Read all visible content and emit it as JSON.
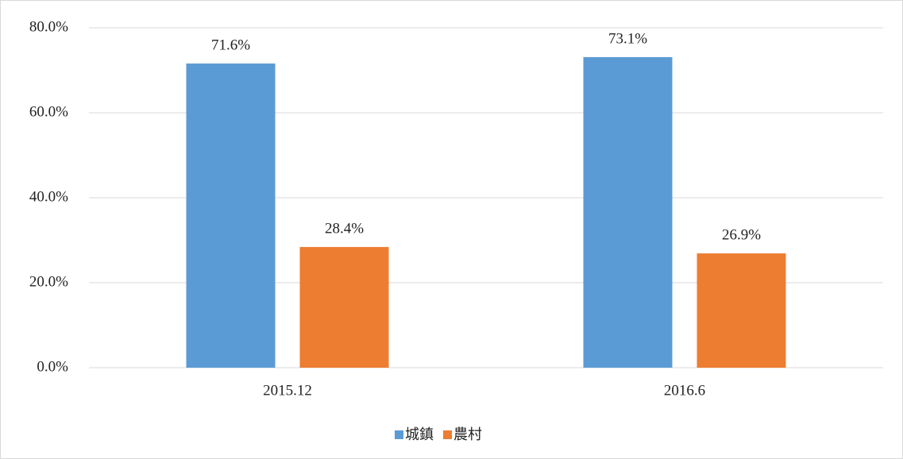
{
  "chart_data": {
    "type": "bar",
    "categories": [
      "2015.12",
      "2016.6"
    ],
    "series": [
      {
        "name": "城鎮",
        "color": "#5b9bd5",
        "values": [
          71.6,
          73.1
        ],
        "value_labels": [
          "71.6%",
          "73.1%"
        ]
      },
      {
        "name": "農村",
        "color": "#ed7d31",
        "values": [
          28.4,
          26.9
        ],
        "value_labels": [
          "28.4%",
          "26.9%"
        ]
      }
    ],
    "ylim": [
      0,
      80
    ],
    "yticks": [
      {
        "value": 0,
        "label": "0.0%"
      },
      {
        "value": 20,
        "label": "20.0%"
      },
      {
        "value": 40,
        "label": "40.0%"
      },
      {
        "value": 60,
        "label": "60.0%"
      },
      {
        "value": 80,
        "label": "80.0%"
      }
    ],
    "grid": true,
    "legend": "bottom"
  }
}
